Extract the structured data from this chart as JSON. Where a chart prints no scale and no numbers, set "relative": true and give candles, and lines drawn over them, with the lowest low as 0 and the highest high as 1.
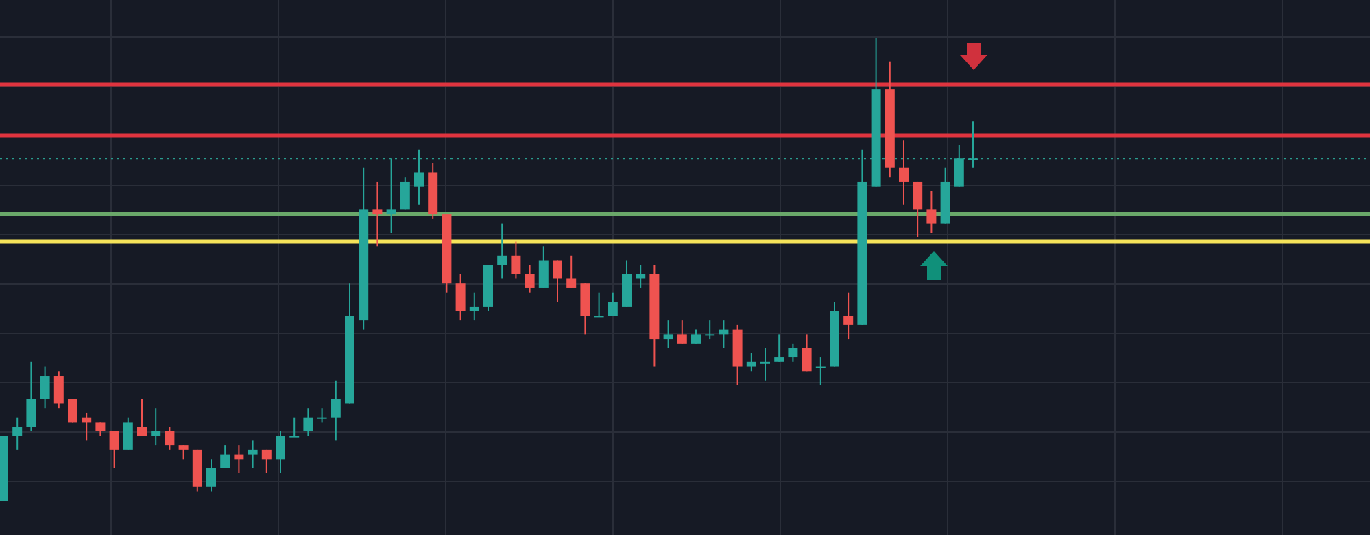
{
  "chart_data": {
    "type": "candlestick",
    "relative": true,
    "grid": true,
    "categories": [
      null,
      null,
      null,
      null,
      null,
      null,
      null,
      null,
      null,
      null,
      null,
      null,
      null,
      null,
      null,
      null,
      null,
      null,
      null,
      null,
      null,
      null,
      null,
      null,
      null,
      null,
      null,
      null,
      null,
      null,
      null,
      null,
      null,
      null,
      null,
      null,
      null,
      null,
      null,
      null,
      null,
      null,
      null,
      null,
      null,
      null,
      null,
      null,
      null,
      null,
      null,
      null,
      null,
      null,
      null,
      null,
      null,
      null,
      null,
      null,
      null,
      null,
      null,
      null,
      null,
      null,
      null,
      null,
      null,
      null,
      null
    ],
    "ohlc": [
      [
        0,
        0.14,
        0,
        0.14
      ],
      [
        0.14,
        0.18,
        0.11,
        0.16
      ],
      [
        0.16,
        0.3,
        0.15,
        0.22
      ],
      [
        0.22,
        0.29,
        0.2,
        0.27
      ],
      [
        0.27,
        0.28,
        0.2,
        0.21
      ],
      [
        0.22,
        0.22,
        0.17,
        0.17
      ],
      [
        0.18,
        0.19,
        0.13,
        0.17
      ],
      [
        0.17,
        0.17,
        0.14,
        0.15
      ],
      [
        0.15,
        0.15,
        0.07,
        0.11
      ],
      [
        0.11,
        0.18,
        0.11,
        0.17
      ],
      [
        0.16,
        0.22,
        0.14,
        0.14
      ],
      [
        0.14,
        0.2,
        0.12,
        0.15
      ],
      [
        0.15,
        0.16,
        0.11,
        0.12
      ],
      [
        0.12,
        0.12,
        0.09,
        0.11
      ],
      [
        0.11,
        0.11,
        0.02,
        0.03
      ],
      [
        0.03,
        0.09,
        0.02,
        0.07
      ],
      [
        0.07,
        0.12,
        0.07,
        0.1
      ],
      [
        0.1,
        0.12,
        0.06,
        0.09
      ],
      [
        0.1,
        0.13,
        0.07,
        0.11
      ],
      [
        0.11,
        0.11,
        0.06,
        0.09
      ],
      [
        0.09,
        0.15,
        0.06,
        0.14
      ],
      [
        0.14,
        0.18,
        0.14,
        0.14
      ],
      [
        0.15,
        0.2,
        0.14,
        0.18
      ],
      [
        0.18,
        0.2,
        0.17,
        0.18
      ],
      [
        0.18,
        0.26,
        0.13,
        0.22
      ],
      [
        0.21,
        0.47,
        0.21,
        0.4
      ],
      [
        0.39,
        0.72,
        0.37,
        0.63
      ],
      [
        0.63,
        0.69,
        0.55,
        0.62
      ],
      [
        0.62,
        0.74,
        0.58,
        0.63
      ],
      [
        0.63,
        0.7,
        0.63,
        0.69
      ],
      [
        0.68,
        0.76,
        0.64,
        0.71
      ],
      [
        0.71,
        0.73,
        0.61,
        0.62
      ],
      [
        0.62,
        0.62,
        0.45,
        0.47
      ],
      [
        0.47,
        0.49,
        0.39,
        0.41
      ],
      [
        0.41,
        0.45,
        0.39,
        0.42
      ],
      [
        0.42,
        0.51,
        0.41,
        0.51
      ],
      [
        0.51,
        0.6,
        0.48,
        0.53
      ],
      [
        0.53,
        0.56,
        0.48,
        0.49
      ],
      [
        0.49,
        0.51,
        0.45,
        0.46
      ],
      [
        0.46,
        0.55,
        0.46,
        0.52
      ],
      [
        0.52,
        0.52,
        0.43,
        0.48
      ],
      [
        0.48,
        0.53,
        0.46,
        0.46
      ],
      [
        0.47,
        0.47,
        0.36,
        0.4
      ],
      [
        0.4,
        0.45,
        0.4,
        0.4
      ],
      [
        0.4,
        0.45,
        0.4,
        0.43
      ],
      [
        0.42,
        0.52,
        0.42,
        0.49
      ],
      [
        0.48,
        0.51,
        0.46,
        0.49
      ],
      [
        0.49,
        0.51,
        0.29,
        0.35
      ],
      [
        0.35,
        0.39,
        0.33,
        0.36
      ],
      [
        0.36,
        0.39,
        0.34,
        0.34
      ],
      [
        0.34,
        0.37,
        0.34,
        0.36
      ],
      [
        0.36,
        0.39,
        0.35,
        0.36
      ],
      [
        0.36,
        0.39,
        0.33,
        0.37
      ],
      [
        0.37,
        0.38,
        0.25,
        0.29
      ],
      [
        0.29,
        0.32,
        0.28,
        0.3
      ],
      [
        0.3,
        0.33,
        0.26,
        0.3
      ],
      [
        0.3,
        0.36,
        0.3,
        0.31
      ],
      [
        0.31,
        0.34,
        0.3,
        0.33
      ],
      [
        0.33,
        0.36,
        0.28,
        0.28
      ],
      [
        0.29,
        0.31,
        0.25,
        0.29
      ],
      [
        0.29,
        0.43,
        0.29,
        0.41
      ],
      [
        0.4,
        0.45,
        0.35,
        0.38
      ],
      [
        0.38,
        0.76,
        0.38,
        0.69
      ],
      [
        0.68,
        1,
        0.68,
        0.89
      ],
      [
        0.89,
        0.95,
        0.7,
        0.72
      ],
      [
        0.72,
        0.78,
        0.64,
        0.69
      ],
      [
        0.69,
        0.69,
        0.57,
        0.63
      ],
      [
        0.63,
        0.67,
        0.58,
        0.6
      ],
      [
        0.6,
        0.72,
        0.6,
        0.69
      ],
      [
        0.68,
        0.77,
        0.68,
        0.74
      ],
      [
        0.74,
        0.82,
        0.72,
        0.74
      ]
    ],
    "ref_lines": [
      {
        "axis": "y",
        "value": 0.9,
        "color": "#e0343f"
      },
      {
        "axis": "y",
        "value": 0.79,
        "color": "#e0343f"
      },
      {
        "axis": "y",
        "value": 0.74,
        "color": "#2a9d8f",
        "line_style": "dotted"
      },
      {
        "axis": "y",
        "value": 0.62,
        "color": "#6aa86a"
      },
      {
        "axis": "y",
        "value": 0.56,
        "color": "#f5e35a"
      }
    ]
  }
}
